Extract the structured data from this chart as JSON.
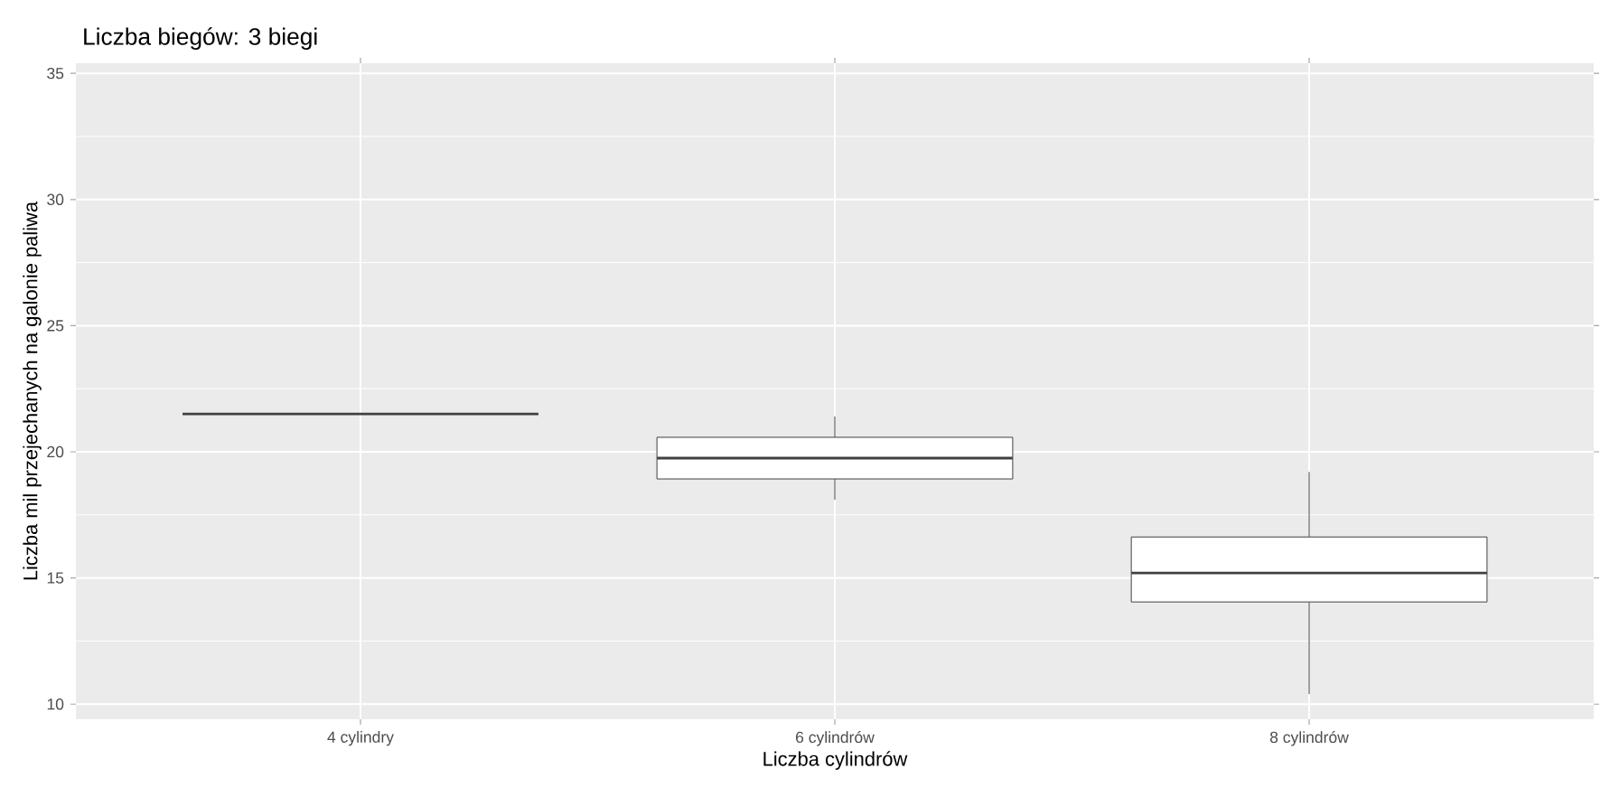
{
  "chart_data": {
    "type": "box",
    "title": "Liczba biegów: 3 biegi",
    "xlabel": "Liczba cylindrów",
    "ylabel": "Liczba mil przejechanych na galonie paliwa",
    "categories": [
      "4 cylindry",
      "6 cylindrów",
      "8 cylindrów"
    ],
    "boxes": [
      {
        "low": 21.5,
        "q1": 21.5,
        "median": 21.5,
        "q3": 21.5,
        "high": 21.5
      },
      {
        "low": 18.1,
        "q1": 18.925,
        "median": 19.75,
        "q3": 20.575,
        "high": 21.4
      },
      {
        "low": 10.4,
        "q1": 14.05,
        "median": 15.2,
        "q3": 16.625,
        "high": 19.2
      }
    ],
    "ylim": [
      9.4,
      35.4
    ],
    "yticks": [
      10,
      15,
      20,
      25,
      30,
      35
    ],
    "grid": true
  }
}
